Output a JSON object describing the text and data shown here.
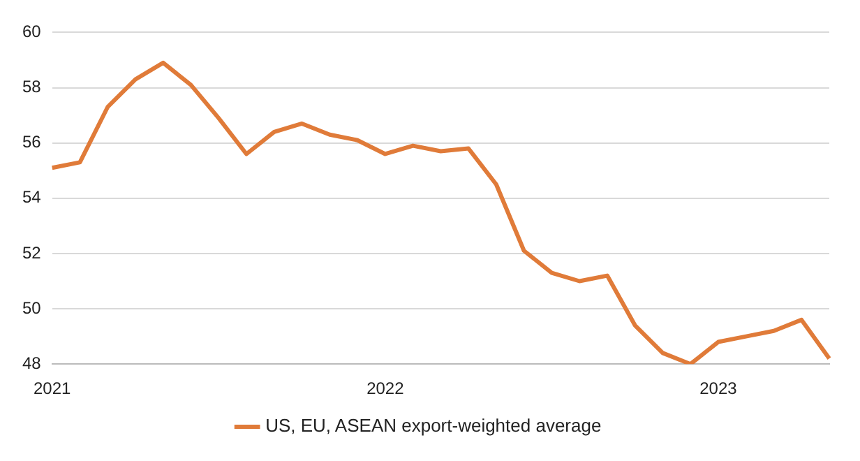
{
  "chart_data": {
    "type": "line",
    "categories": [
      "2021",
      null,
      null,
      null,
      null,
      null,
      null,
      null,
      null,
      null,
      null,
      null,
      "2022",
      null,
      null,
      null,
      null,
      null,
      null,
      null,
      null,
      null,
      null,
      null,
      "2023",
      null,
      null,
      null,
      null
    ],
    "series": [
      {
        "name": "US, EU, ASEAN export-weighted average",
        "color": "#e07b39",
        "values": [
          55.1,
          55.3,
          57.3,
          58.3,
          58.9,
          58.1,
          56.9,
          55.6,
          56.4,
          56.7,
          56.3,
          56.1,
          55.6,
          55.9,
          55.7,
          55.8,
          54.5,
          52.1,
          51.3,
          51.0,
          51.2,
          49.4,
          48.4,
          48.0,
          48.8,
          49.0,
          49.2,
          49.6,
          48.2
        ]
      }
    ],
    "ylim": [
      48,
      60
    ],
    "yticks": [
      48,
      50,
      52,
      54,
      56,
      58,
      60
    ],
    "grid": "y",
    "legend": "bottom",
    "marker": "none",
    "line_style": "solid"
  }
}
